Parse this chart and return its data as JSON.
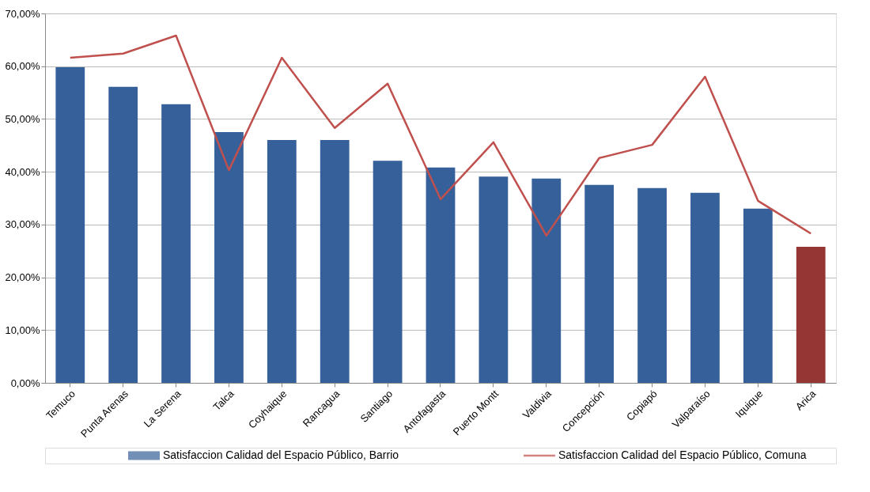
{
  "chart_data": {
    "type": "bar",
    "categories": [
      "Temuco",
      "Punta Arenas",
      "La Serena",
      "Talca",
      "Coyhaique",
      "Rancagua",
      "Santiago",
      "Antofagasta",
      "Puerto Montt",
      "Valdivia",
      "Concepción",
      "Copiapó",
      "Valparaíso",
      "Iquique",
      "Arica"
    ],
    "series": [
      {
        "name": "Satisfaccion Calidad del Espacio Público,  Barrio",
        "color": "#36609a",
        "colors": [
          "#36609a",
          "#36609a",
          "#36609a",
          "#36609a",
          "#36609a",
          "#36609a",
          "#36609a",
          "#36609a",
          "#36609a",
          "#36609a",
          "#36609a",
          "#36609a",
          "#36609a",
          "#36609a",
          "#963634"
        ],
        "values": [
          59.8,
          56.1,
          52.8,
          47.5,
          46.0,
          46.0,
          42.1,
          40.8,
          39.1,
          38.7,
          37.5,
          36.9,
          36.0,
          33.0,
          25.8
        ]
      },
      {
        "name": "Satisfaccion Calidad del Espacio Público,  Comuna",
        "type": "line",
        "color": "#c0504d",
        "values": [
          61.6,
          62.4,
          65.8,
          40.3,
          61.6,
          48.3,
          56.7,
          34.8,
          45.6,
          27.9,
          42.6,
          45.1,
          58.0,
          34.5,
          28.3
        ]
      }
    ],
    "ylim": [
      0,
      70
    ],
    "yticks": [
      {
        "value": 0,
        "label": "0,00%"
      },
      {
        "value": 10,
        "label": "10,00%"
      },
      {
        "value": 20,
        "label": "20,00%"
      },
      {
        "value": 30,
        "label": "30,00%"
      },
      {
        "value": 40,
        "label": "40,00%"
      },
      {
        "value": 50,
        "label": "50,00%"
      },
      {
        "value": 60,
        "label": "60,00%"
      },
      {
        "value": 70,
        "label": "70,00%"
      }
    ],
    "grid": "y",
    "legend": "bottom",
    "marker": "none",
    "line_style": "solid"
  }
}
